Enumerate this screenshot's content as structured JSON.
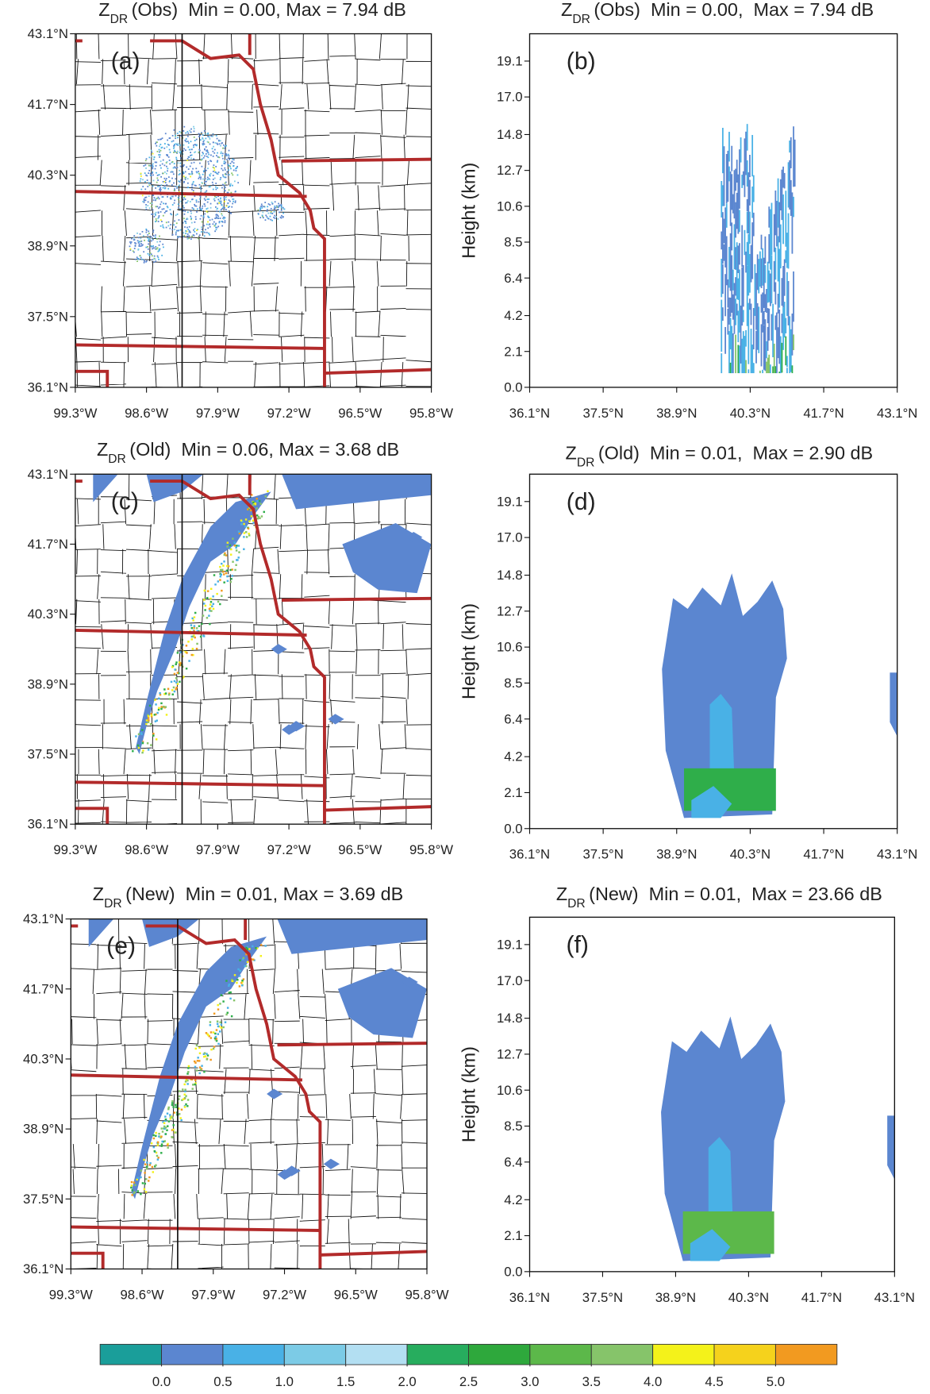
{
  "chart_data": [
    {
      "type": "map",
      "title_symbol": "Z",
      "title_subscript": "DR",
      "title": "(Obs)  Min = 0.00, Max = 7.94 dB",
      "label": "(a)",
      "xlim": [
        -99.3,
        -95.8
      ],
      "ylim": [
        36.1,
        43.1
      ],
      "xticks": [
        {
          "value": -99.3,
          "label": "99.3°W"
        },
        {
          "value": -98.6,
          "label": "98.6°W"
        },
        {
          "value": -97.9,
          "label": "97.9°W"
        },
        {
          "value": -97.2,
          "label": "97.2°W"
        },
        {
          "value": -96.5,
          "label": "96.5°W"
        },
        {
          "value": -95.8,
          "label": "95.8°W"
        }
      ],
      "yticks": [
        {
          "value": 36.1,
          "label": "36.1°N"
        },
        {
          "value": 37.5,
          "label": "37.5°N"
        },
        {
          "value": 38.9,
          "label": "38.9°N"
        },
        {
          "value": 40.3,
          "label": "40.3°N"
        },
        {
          "value": 41.7,
          "label": "41.7°N"
        },
        {
          "value": 43.1,
          "label": "43.1°N"
        }
      ]
    },
    {
      "type": "cross-section",
      "title_symbol": "Z",
      "title_subscript": "DR",
      "title": "(Obs)  Min = 0.00,  Max = 7.94 dB",
      "label": "(b)",
      "ylabel": "Height (km)",
      "xlim": [
        36.1,
        43.1
      ],
      "ylim": [
        0,
        20.7
      ],
      "xticks": [
        {
          "value": 36.1,
          "label": "36.1°N"
        },
        {
          "value": 37.5,
          "label": "37.5°N"
        },
        {
          "value": 38.9,
          "label": "38.9°N"
        },
        {
          "value": 40.3,
          "label": "40.3°N"
        },
        {
          "value": 41.7,
          "label": "41.7°N"
        },
        {
          "value": 43.1,
          "label": "43.1°N"
        }
      ],
      "yticks": [
        {
          "value": 0,
          "label": "0.0"
        },
        2.1,
        4.2,
        6.4,
        8.5,
        10.6,
        12.7,
        14.8,
        {
          "value": 17,
          "label": "17.0"
        },
        19.1
      ]
    },
    {
      "type": "map",
      "title_symbol": "Z",
      "title_subscript": "DR",
      "title": "(Old)  Min = 0.06, Max = 3.68 dB",
      "label": "(c)",
      "xlim": [
        -99.3,
        -95.8
      ],
      "ylim": [
        36.1,
        43.1
      ],
      "xticks": [
        {
          "value": -99.3,
          "label": "99.3°W"
        },
        {
          "value": -98.6,
          "label": "98.6°W"
        },
        {
          "value": -97.9,
          "label": "97.9°W"
        },
        {
          "value": -97.2,
          "label": "97.2°W"
        },
        {
          "value": -96.5,
          "label": "96.5°W"
        },
        {
          "value": -95.8,
          "label": "95.8°W"
        }
      ],
      "yticks": [
        {
          "value": 36.1,
          "label": "36.1°N"
        },
        {
          "value": 37.5,
          "label": "37.5°N"
        },
        {
          "value": 38.9,
          "label": "38.9°N"
        },
        {
          "value": 40.3,
          "label": "40.3°N"
        },
        {
          "value": 41.7,
          "label": "41.7°N"
        },
        {
          "value": 43.1,
          "label": "43.1°N"
        }
      ]
    },
    {
      "type": "cross-section",
      "title_symbol": "Z",
      "title_subscript": "DR",
      "title": "(Old)  Min = 0.01,  Max = 2.90 dB",
      "label": "(d)",
      "ylabel": "Height (km)",
      "xlim": [
        36.1,
        43.1
      ],
      "ylim": [
        0,
        20.7
      ],
      "xticks": [
        {
          "value": 36.1,
          "label": "36.1°N"
        },
        {
          "value": 37.5,
          "label": "37.5°N"
        },
        {
          "value": 38.9,
          "label": "38.9°N"
        },
        {
          "value": 40.3,
          "label": "40.3°N"
        },
        {
          "value": 41.7,
          "label": "41.7°N"
        },
        {
          "value": 43.1,
          "label": "43.1°N"
        }
      ],
      "yticks": [
        {
          "value": 0,
          "label": "0.0"
        },
        2.1,
        4.2,
        6.4,
        8.5,
        10.6,
        12.7,
        14.8,
        {
          "value": 17,
          "label": "17.0"
        },
        19.1
      ]
    },
    {
      "type": "map",
      "title_symbol": "Z",
      "title_subscript": "DR",
      "title": "(New)  Min = 0.01, Max = 3.69 dB",
      "label": "(e)",
      "xlim": [
        -99.3,
        -95.8
      ],
      "ylim": [
        36.1,
        43.1
      ],
      "xticks": [
        {
          "value": -99.3,
          "label": "99.3°W"
        },
        {
          "value": -98.6,
          "label": "98.6°W"
        },
        {
          "value": -97.9,
          "label": "97.9°W"
        },
        {
          "value": -97.2,
          "label": "97.2°W"
        },
        {
          "value": -96.5,
          "label": "96.5°W"
        },
        {
          "value": -95.8,
          "label": "95.8°W"
        }
      ],
      "yticks": [
        {
          "value": 36.1,
          "label": "36.1°N"
        },
        {
          "value": 37.5,
          "label": "37.5°N"
        },
        {
          "value": 38.9,
          "label": "38.9°N"
        },
        {
          "value": 40.3,
          "label": "40.3°N"
        },
        {
          "value": 41.7,
          "label": "41.7°N"
        },
        {
          "value": 43.1,
          "label": "43.1°N"
        }
      ]
    },
    {
      "type": "cross-section",
      "title_symbol": "Z",
      "title_subscript": "DR",
      "title": "(New)  Min = 0.01,  Max = 23.66 dB",
      "label": "(f)",
      "ylabel": "Height (km)",
      "xlim": [
        36.1,
        43.1
      ],
      "ylim": [
        0,
        20.7
      ],
      "xticks": [
        {
          "value": 36.1,
          "label": "36.1°N"
        },
        {
          "value": 37.5,
          "label": "37.5°N"
        },
        {
          "value": 38.9,
          "label": "38.9°N"
        },
        {
          "value": 40.3,
          "label": "40.3°N"
        },
        {
          "value": 41.7,
          "label": "41.7°N"
        },
        {
          "value": 43.1,
          "label": "43.1°N"
        }
      ],
      "yticks": [
        {
          "value": 0,
          "label": "0.0"
        },
        2.1,
        4.2,
        6.4,
        8.5,
        10.6,
        12.7,
        14.8,
        {
          "value": 17,
          "label": "17.0"
        },
        19.1
      ]
    },
    {
      "type": "colorbar",
      "lim": [
        -0.5,
        5.5
      ],
      "colors": [
        "#1a9e9a",
        "#5b86d0",
        "#49b1e6",
        "#7ccbe6",
        "#b3dff2",
        "#27ad5e",
        "#2ea83c",
        "#5cb84a",
        "#86c46a",
        "#f4f21a",
        "#f5d21c",
        "#f29a20"
      ],
      "ticks": [
        {
          "value": 0,
          "label": "0.0"
        },
        0.5,
        {
          "value": 1,
          "label": "1.0"
        },
        1.5,
        {
          "value": 2,
          "label": "2.0"
        },
        2.5,
        {
          "value": 3,
          "label": "3.0"
        },
        3.5,
        {
          "value": 4,
          "label": "4.0"
        },
        4.5,
        {
          "value": 5,
          "label": "5.0"
        }
      ]
    }
  ]
}
